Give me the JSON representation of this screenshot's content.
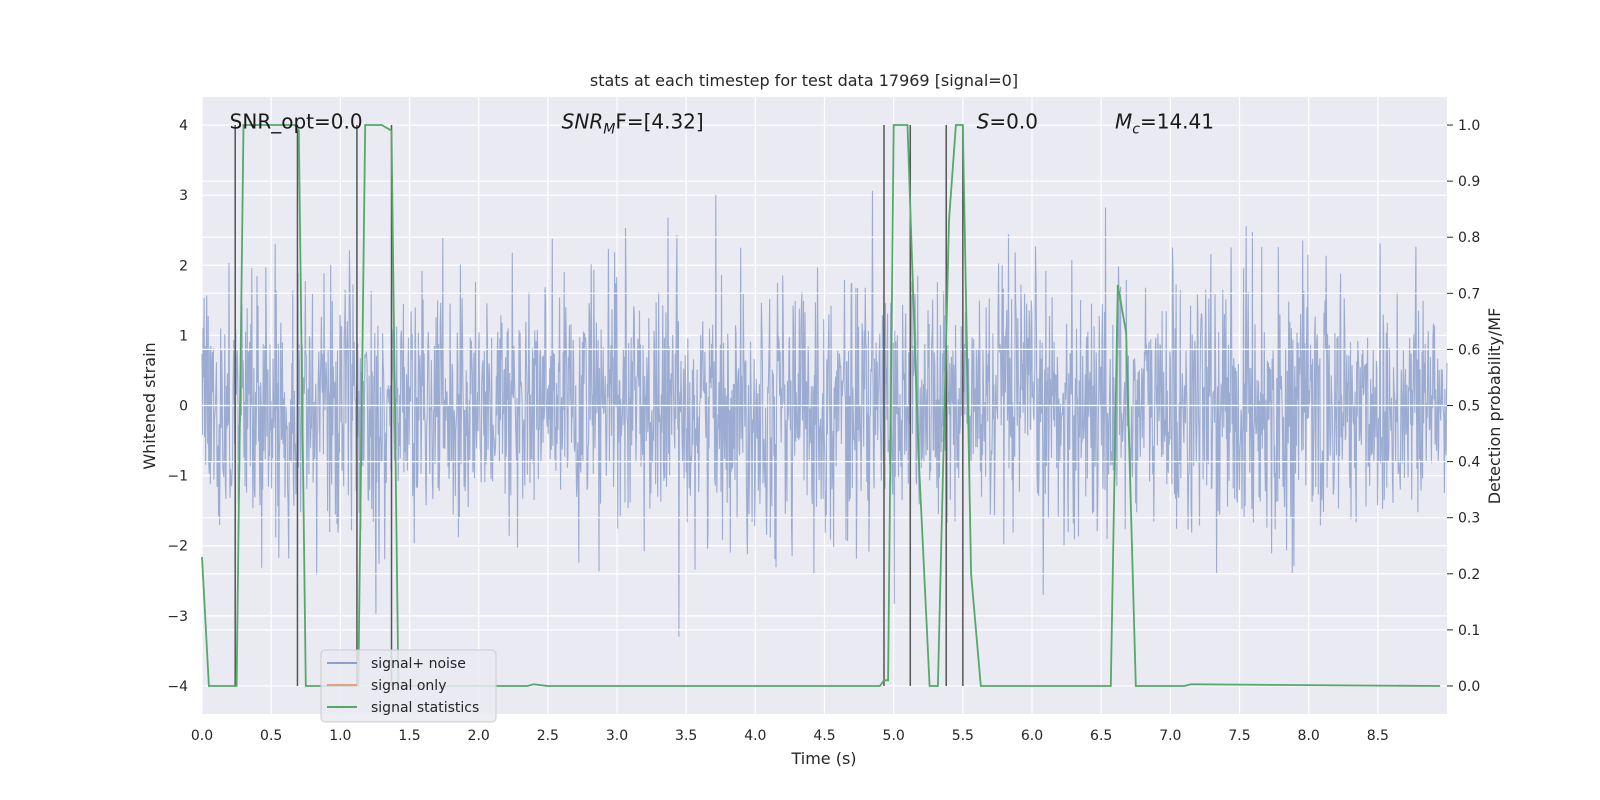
{
  "chart_data": {
    "type": "line",
    "title": "stats at each timestep for test data 17969 [signal=0]",
    "xlabel": "Time (s)",
    "ylabel": "Whitened strain",
    "y2label": "Detection probability/MF",
    "xlim": [
      0.0,
      9.0
    ],
    "ylim": [
      -4.4,
      4.4
    ],
    "y2lim": [
      -0.05,
      1.05
    ],
    "xticks": [
      "0.0",
      "0.5",
      "1.0",
      "1.5",
      "2.0",
      "2.5",
      "3.0",
      "3.5",
      "4.0",
      "4.5",
      "5.0",
      "5.5",
      "6.0",
      "6.5",
      "7.0",
      "7.5",
      "8.0",
      "8.5"
    ],
    "xtick_values": [
      0.0,
      0.5,
      1.0,
      1.5,
      2.0,
      2.5,
      3.0,
      3.5,
      4.0,
      4.5,
      5.0,
      5.5,
      6.0,
      6.5,
      7.0,
      7.5,
      8.0,
      8.5
    ],
    "yticks": [
      "−4",
      "−3",
      "−2",
      "−1",
      "0",
      "1",
      "2",
      "3",
      "4"
    ],
    "ytick_values": [
      -4,
      -3,
      -2,
      -1,
      0,
      1,
      2,
      3,
      4
    ],
    "y2ticks": [
      "0.0",
      "0.1",
      "0.2",
      "0.3",
      "0.4",
      "0.5",
      "0.6",
      "0.7",
      "0.8",
      "0.9",
      "1.0"
    ],
    "y2tick_values": [
      0.0,
      0.1,
      0.2,
      0.3,
      0.4,
      0.5,
      0.6,
      0.7,
      0.8,
      0.9,
      1.0
    ],
    "grid": true,
    "legend_placement": "lower-left",
    "annotations": [
      {
        "text": "SNR_opt=0.0",
        "x": 0.2,
        "y": 4.05
      },
      {
        "text_parts": [
          {
            "t": "SNR",
            "i": true
          },
          {
            "t": "M",
            "i": true,
            "sub": true
          },
          {
            "t": "F=[4.32]",
            "i": false
          }
        ],
        "x": 2.6,
        "y": 4.05
      },
      {
        "text_parts": [
          {
            "t": "S",
            "i": true
          },
          {
            "t": "=0.0",
            "i": false
          }
        ],
        "x": 5.6,
        "y": 4.05
      },
      {
        "text_parts": [
          {
            "t": "M",
            "i": true
          },
          {
            "t": "c",
            "i": true,
            "sub": true
          },
          {
            "t": "=14.41",
            "i": false
          }
        ],
        "x": 6.6,
        "y": 4.05
      }
    ],
    "series": [
      {
        "name": "signal+ noise",
        "color": "#8da0cb",
        "axis": "left",
        "kind": "noise",
        "approx_std": 0.9,
        "range": [
          -4.0,
          4.0
        ]
      },
      {
        "name": "signal only",
        "color": "#e8a07c",
        "axis": "left",
        "x": [],
        "y": []
      },
      {
        "name": "signal statistics",
        "color": "#55a868",
        "axis": "right",
        "x": [
          0.0,
          0.05,
          0.25,
          0.3,
          0.67,
          0.7,
          0.75,
          1.1,
          1.13,
          1.18,
          1.3,
          1.37,
          1.42,
          2.35,
          2.4,
          2.5,
          4.9,
          4.93,
          4.96,
          5.0,
          5.1,
          5.18,
          5.26,
          5.32,
          5.4,
          5.45,
          5.5,
          5.56,
          5.63,
          6.55,
          6.57,
          6.62,
          6.68,
          6.75,
          7.1,
          7.15,
          8.95
        ],
        "y": [
          0.23,
          0.0,
          0.0,
          1.0,
          1.0,
          0.99,
          0.0,
          0.0,
          0.0,
          1.0,
          1.0,
          0.99,
          0.0,
          0.0,
          0.003,
          0.0,
          0.0,
          0.01,
          0.01,
          1.0,
          1.0,
          0.41,
          0.0,
          0.0,
          0.83,
          1.0,
          1.0,
          0.2,
          0.0,
          0.0,
          0.0,
          0.715,
          0.63,
          0.0,
          0.0,
          0.003,
          0.0
        ]
      }
    ],
    "vertical_markers": [
      0.24,
      0.69,
      1.12,
      1.37,
      4.93,
      5.12,
      5.38,
      5.5
    ]
  }
}
